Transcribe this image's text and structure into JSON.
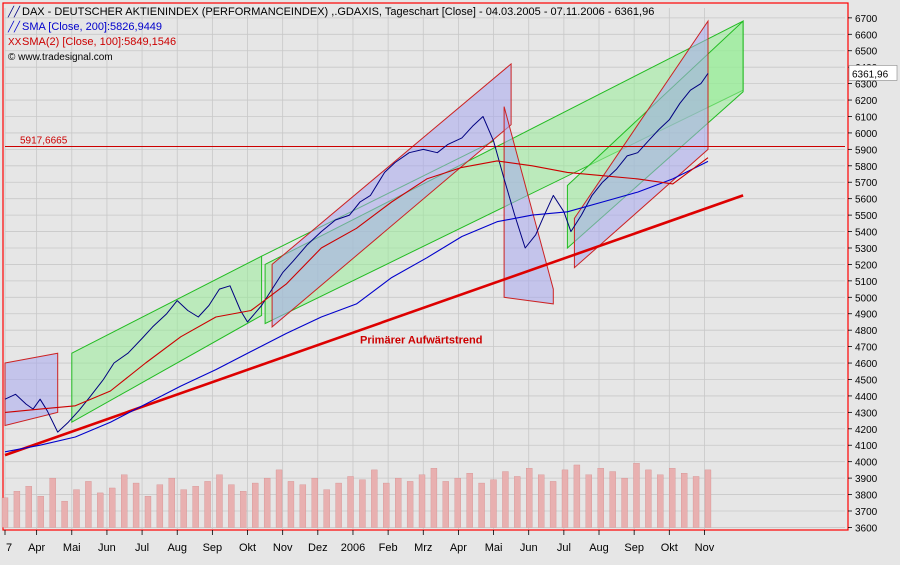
{
  "header": {
    "line1": "DAX - DEUTSCHER AKTIENINDEX (PERFORMANCEINDEX) ,.GDAXIS, Tageschart [Close] - 04.03.2005 - 07.11.2006 - 6361,96",
    "line2": "SMA [Close, 200]:5826,9449",
    "line3": "SMA(2) [Close, 100]:5849,1546",
    "line4": "© www.tradesignal.com",
    "icon_line1": "line-chart-icon",
    "icon_line2": "line-chart-icon",
    "icon_line3": "xx-marker-icon"
  },
  "colors": {
    "price": "#000080",
    "sma200": "#0000cc",
    "sma100": "#cc0000",
    "trend": "#dd0000",
    "uptrend_channel": "#98ec98",
    "upper_channel_fill": "#a8a8ee",
    "red_channel_border": "#cc2222",
    "volume": "#e8b0b0",
    "background": "#e6e6e6",
    "frame": "#ff0000"
  },
  "chart_data": {
    "type": "line",
    "yaxis_ticks": [
      3600,
      3700,
      3800,
      3900,
      4000,
      4100,
      4200,
      4300,
      4400,
      4500,
      4600,
      4700,
      4800,
      4900,
      5000,
      5100,
      5200,
      5300,
      5400,
      5500,
      5600,
      5700,
      5800,
      5900,
      6000,
      6100,
      6200,
      6300,
      6400,
      6500,
      6600,
      6700
    ],
    "ylim": [
      3560,
      6760
    ],
    "xaxis_ticks": [
      "7",
      "Apr",
      "Mai",
      "Jun",
      "Jul",
      "Aug",
      "Sep",
      "Okt",
      "Nov",
      "Dez",
      "2006",
      "Feb",
      "Mrz",
      "Apr",
      "Mai",
      "Jun",
      "Jul",
      "Aug",
      "Sep",
      "Okt",
      "Nov"
    ],
    "x_tick_months": [
      0.0,
      0.9,
      1.9,
      2.9,
      3.9,
      4.9,
      5.9,
      6.9,
      7.9,
      8.9,
      9.9,
      10.9,
      11.9,
      12.9,
      13.9,
      14.9,
      15.9,
      16.9,
      17.9,
      18.9,
      19.9
    ],
    "xlim_months": [
      0.0,
      20.2
    ],
    "last_value_label": "6361,96",
    "last_value": 6361.96,
    "horizontal_line_label": "5917,6665",
    "horizontal_line_value": 5917.6665,
    "annotation": "Primärer Aufwärtstrend",
    "annotation_x_month": 10.1,
    "annotation_value": 4720,
    "series": [
      {
        "name": "DAX",
        "points": [
          [
            0.0,
            4380
          ],
          [
            0.3,
            4410
          ],
          [
            0.6,
            4350
          ],
          [
            0.8,
            4320
          ],
          [
            1.0,
            4380
          ],
          [
            1.2,
            4310
          ],
          [
            1.5,
            4180
          ],
          [
            1.8,
            4240
          ],
          [
            2.1,
            4310
          ],
          [
            2.4,
            4390
          ],
          [
            2.8,
            4500
          ],
          [
            3.1,
            4600
          ],
          [
            3.5,
            4660
          ],
          [
            3.9,
            4750
          ],
          [
            4.2,
            4820
          ],
          [
            4.6,
            4900
          ],
          [
            4.9,
            4980
          ],
          [
            5.2,
            4920
          ],
          [
            5.5,
            4880
          ],
          [
            5.8,
            4950
          ],
          [
            6.1,
            5050
          ],
          [
            6.4,
            5070
          ],
          [
            6.7,
            4920
          ],
          [
            6.9,
            4850
          ],
          [
            7.3,
            4950
          ],
          [
            7.6,
            5050
          ],
          [
            7.9,
            5150
          ],
          [
            8.2,
            5220
          ],
          [
            8.6,
            5320
          ],
          [
            9.0,
            5400
          ],
          [
            9.4,
            5470
          ],
          [
            9.8,
            5500
          ],
          [
            10.1,
            5580
          ],
          [
            10.4,
            5620
          ],
          [
            10.8,
            5760
          ],
          [
            11.1,
            5820
          ],
          [
            11.5,
            5880
          ],
          [
            11.9,
            5900
          ],
          [
            12.3,
            5880
          ],
          [
            12.6,
            5930
          ],
          [
            13.0,
            5970
          ],
          [
            13.3,
            6040
          ],
          [
            13.6,
            6100
          ],
          [
            13.9,
            5950
          ],
          [
            14.2,
            5720
          ],
          [
            14.5,
            5500
          ],
          [
            14.8,
            5300
          ],
          [
            15.1,
            5380
          ],
          [
            15.3,
            5480
          ],
          [
            15.6,
            5620
          ],
          [
            15.9,
            5520
          ],
          [
            16.1,
            5400
          ],
          [
            16.4,
            5500
          ],
          [
            16.7,
            5620
          ],
          [
            17.0,
            5700
          ],
          [
            17.4,
            5780
          ],
          [
            17.7,
            5860
          ],
          [
            18.0,
            5880
          ],
          [
            18.3,
            5950
          ],
          [
            18.6,
            6020
          ],
          [
            18.9,
            6080
          ],
          [
            19.2,
            6180
          ],
          [
            19.5,
            6260
          ],
          [
            19.8,
            6300
          ],
          [
            20.0,
            6361.96
          ]
        ]
      },
      {
        "name": "SMA [Close, 200]:5826,9449",
        "points": [
          [
            0.0,
            4060
          ],
          [
            1.0,
            4100
          ],
          [
            2.0,
            4150
          ],
          [
            3.0,
            4240
          ],
          [
            4.0,
            4350
          ],
          [
            5.0,
            4460
          ],
          [
            6.0,
            4560
          ],
          [
            7.0,
            4670
          ],
          [
            8.0,
            4780
          ],
          [
            9.0,
            4880
          ],
          [
            10.0,
            4960
          ],
          [
            11.0,
            5120
          ],
          [
            12.0,
            5240
          ],
          [
            13.0,
            5370
          ],
          [
            14.0,
            5460
          ],
          [
            15.0,
            5500
          ],
          [
            16.0,
            5520
          ],
          [
            17.0,
            5580
          ],
          [
            18.0,
            5640
          ],
          [
            19.0,
            5720
          ],
          [
            20.0,
            5827
          ]
        ]
      },
      {
        "name": "SMA(2) [Close, 100]:5849,1546",
        "points": [
          [
            0.0,
            4300
          ],
          [
            1.0,
            4320
          ],
          [
            2.0,
            4340
          ],
          [
            3.0,
            4430
          ],
          [
            4.0,
            4600
          ],
          [
            5.0,
            4760
          ],
          [
            6.0,
            4880
          ],
          [
            7.0,
            4920
          ],
          [
            8.0,
            5080
          ],
          [
            9.0,
            5300
          ],
          [
            10.0,
            5420
          ],
          [
            11.0,
            5580
          ],
          [
            12.0,
            5720
          ],
          [
            13.0,
            5790
          ],
          [
            14.0,
            5830
          ],
          [
            15.0,
            5800
          ],
          [
            16.0,
            5760
          ],
          [
            17.0,
            5740
          ],
          [
            18.0,
            5720
          ],
          [
            19.0,
            5690
          ],
          [
            20.0,
            5849
          ]
        ]
      }
    ],
    "trendline": [
      [
        0.0,
        4040
      ],
      [
        21.0,
        5620
      ]
    ],
    "channels_green": [
      {
        "upper": [
          [
            1.9,
            4660
          ],
          [
            7.3,
            5250
          ]
        ],
        "lower": [
          [
            1.9,
            4240
          ],
          [
            7.3,
            4890
          ]
        ],
        "ext_upper": [
          [
            7.3,
            5250
          ],
          [
            13.9,
            5950
          ]
        ]
      },
      {
        "upper": [
          [
            7.4,
            5200
          ],
          [
            21.0,
            6680
          ]
        ],
        "lower": [
          [
            7.4,
            4840
          ],
          [
            21.0,
            6260
          ]
        ]
      },
      {
        "upper": [
          [
            16.0,
            5680
          ],
          [
            21.0,
            6680
          ]
        ],
        "lower": [
          [
            16.0,
            5300
          ],
          [
            21.0,
            6250
          ]
        ]
      }
    ],
    "channels_red_blue": [
      {
        "upper": [
          [
            0.0,
            4600
          ],
          [
            1.5,
            4660
          ]
        ],
        "lower": [
          [
            0.0,
            4220
          ],
          [
            1.5,
            4300
          ]
        ]
      },
      {
        "upper": [
          [
            7.6,
            5200
          ],
          [
            14.4,
            6420
          ]
        ],
        "lower": [
          [
            7.6,
            4820
          ],
          [
            14.4,
            6050
          ]
        ]
      },
      {
        "upper": [
          [
            14.2,
            6160
          ],
          [
            15.6,
            5050
          ]
        ],
        "lower": [
          [
            14.2,
            5000
          ],
          [
            15.6,
            4960
          ]
        ]
      },
      {
        "upper": [
          [
            16.2,
            5480
          ],
          [
            20.0,
            6680
          ]
        ],
        "lower": [
          [
            16.2,
            5180
          ],
          [
            20.0,
            5900
          ]
        ]
      }
    ],
    "volume": {
      "min": 3600,
      "scale_max": 4000,
      "values": [
        3780,
        3820,
        3850,
        3790,
        3900,
        3760,
        3830,
        3880,
        3810,
        3840,
        3920,
        3870,
        3790,
        3860,
        3900,
        3830,
        3850,
        3880,
        3920,
        3860,
        3820,
        3870,
        3900,
        3950,
        3880,
        3860,
        3900,
        3830,
        3870,
        3910,
        3890,
        3950,
        3870,
        3900,
        3880,
        3920,
        3960,
        3880,
        3900,
        3930,
        3870,
        3890,
        3940,
        3910,
        3960,
        3920,
        3880,
        3950,
        3980,
        3920,
        3960,
        3940,
        3900,
        3990,
        3950,
        3920,
        3960,
        3930,
        3910,
        3950
      ]
    }
  }
}
